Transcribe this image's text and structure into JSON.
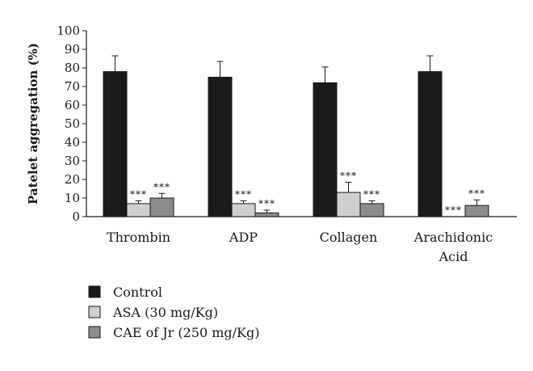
{
  "chart_data": {
    "type": "bar",
    "title": "",
    "xlabel": "",
    "ylabel": "Patelet aggregation (%)",
    "ylim": [
      0,
      100
    ],
    "yticks": [
      0,
      10,
      20,
      30,
      40,
      50,
      60,
      70,
      80,
      90,
      100
    ],
    "categories": [
      [
        "Thrombin"
      ],
      [
        "ADP"
      ],
      [
        "Collagen"
      ],
      [
        "Arachidonic",
        "Acid"
      ]
    ],
    "series": [
      {
        "name": "Control",
        "color": "#1a1a1a",
        "values": [
          78,
          75,
          72,
          78
        ],
        "errors": [
          8.5,
          8.5,
          8.5,
          8.5
        ],
        "significance": [
          "",
          "",
          "",
          ""
        ]
      },
      {
        "name": "ASA (30 mg/Kg)",
        "color": "#cfcfcf",
        "values": [
          7,
          7,
          13,
          0
        ],
        "errors": [
          1.5,
          1.5,
          5.5,
          0
        ],
        "significance": [
          "***",
          "***",
          "***",
          "***"
        ]
      },
      {
        "name": "CAE of Jr (250 mg/Kg)",
        "color": "#8c8c8c",
        "values": [
          10,
          2,
          7,
          6
        ],
        "errors": [
          2.5,
          1.5,
          1.5,
          3
        ],
        "significance": [
          "***",
          "***",
          "***",
          "***"
        ]
      }
    ],
    "legend_position": "bottom-left",
    "grid": false
  }
}
